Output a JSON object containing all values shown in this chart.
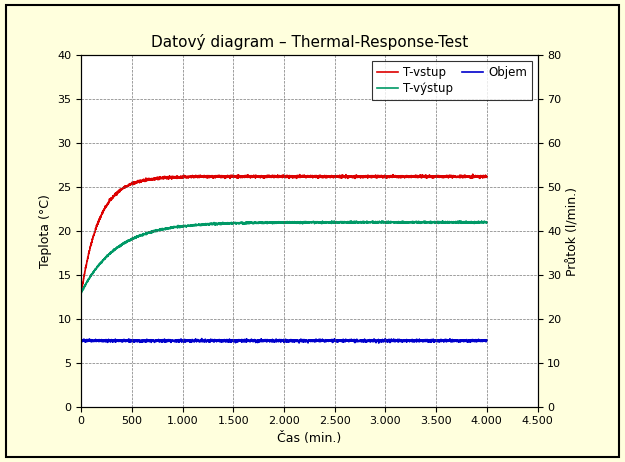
{
  "title": "Datový diagram – Thermal-Response-Test",
  "xlabel": "Čas (min.)",
  "ylabel_left": "Teplota (°C)",
  "ylabel_right": "Průtok (l/min.)",
  "xlim": [
    0,
    4500
  ],
  "ylim_left": [
    0,
    40
  ],
  "ylim_right": [
    0,
    80
  ],
  "xticks": [
    0,
    500,
    1000,
    1500,
    2000,
    2500,
    3000,
    3500,
    4000,
    4500
  ],
  "xtick_labels": [
    "0",
    "500",
    "1.000",
    "1.500",
    "2.000",
    "2.500",
    "3.000",
    "3.500",
    "4.000",
    "4.500"
  ],
  "yticks_left": [
    0,
    5,
    10,
    15,
    20,
    25,
    30,
    35,
    40
  ],
  "yticks_right": [
    0,
    10,
    20,
    30,
    40,
    50,
    60,
    70,
    80
  ],
  "legend": [
    {
      "label": "T-vstup",
      "color": "#dd0000"
    },
    {
      "label": "T-výstup",
      "color": "#009966"
    },
    {
      "label": "Objem",
      "color": "#0000cc"
    }
  ],
  "background_color": "#ffffdd",
  "plot_bg_color": "#ffffff",
  "grid_color": "#000000",
  "grid_style": "--",
  "line_width": 1.2,
  "T_vstup_start": 13.0,
  "T_vstup_end": 26.2,
  "T_vstup_tau": 180,
  "T_vystup_start": 13.0,
  "T_vystup_end": 21.0,
  "T_vystup_tau": 350,
  "Objem_level": 7.5
}
